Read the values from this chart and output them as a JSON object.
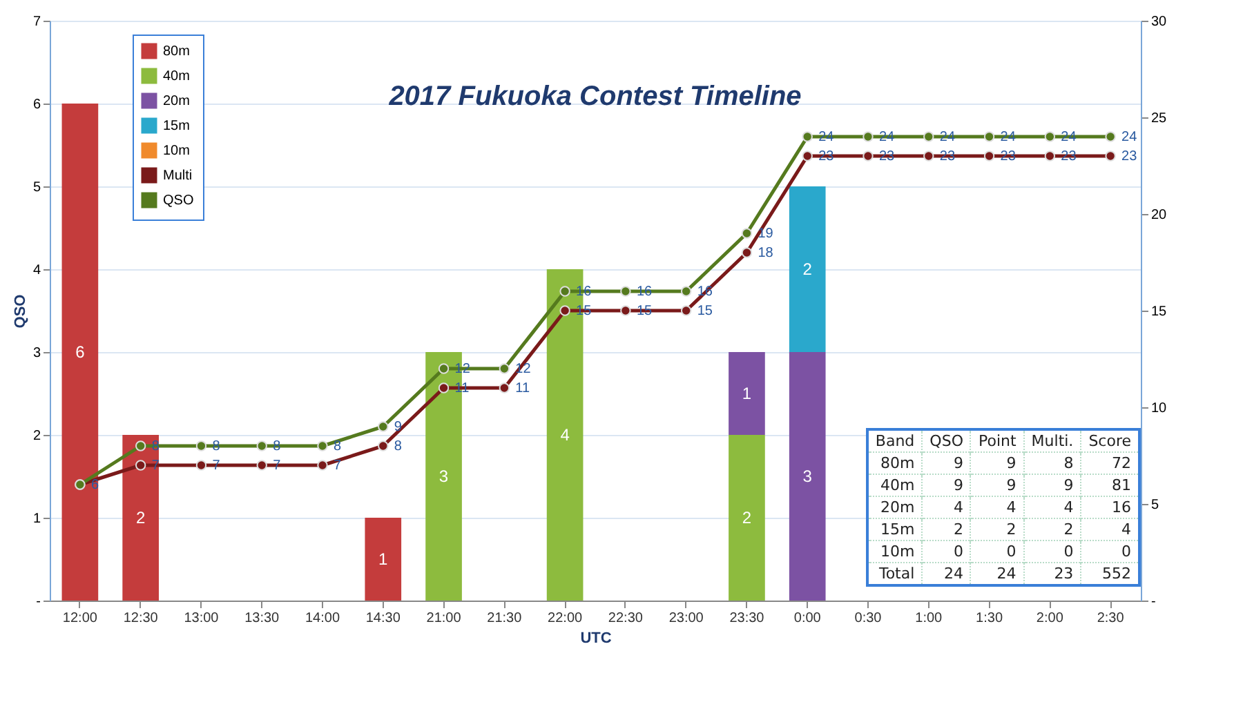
{
  "chart_data": {
    "type": "bar",
    "title": "2017 Fukuoka Contest Timeline",
    "xlabel": "UTC",
    "ylabel": "QSO",
    "categories": [
      "12:00",
      "12:30",
      "13:00",
      "13:30",
      "14:00",
      "14:30",
      "21:00",
      "21:30",
      "22:00",
      "22:30",
      "23:00",
      "23:30",
      "0:00",
      "0:30",
      "1:00",
      "1:30",
      "2:00",
      "2:30"
    ],
    "stacked": true,
    "series": [
      {
        "name": "80m",
        "color": "#c43c3c",
        "values": [
          6,
          2,
          null,
          null,
          null,
          1,
          null,
          null,
          null,
          null,
          null,
          null,
          null,
          null,
          null,
          null,
          null,
          null
        ]
      },
      {
        "name": "40m",
        "color": "#8dbb3e",
        "values": [
          null,
          null,
          null,
          null,
          null,
          null,
          3,
          null,
          4,
          null,
          null,
          2,
          null,
          null,
          null,
          null,
          null,
          null
        ]
      },
      {
        "name": "20m",
        "color": "#7c52a3",
        "values": [
          null,
          null,
          null,
          null,
          null,
          null,
          null,
          null,
          null,
          null,
          null,
          1,
          3,
          null,
          null,
          null,
          null,
          null
        ]
      },
      {
        "name": "15m",
        "color": "#2aa8cc",
        "values": [
          null,
          null,
          null,
          null,
          null,
          null,
          null,
          null,
          null,
          null,
          null,
          null,
          2,
          null,
          null,
          null,
          null,
          null
        ]
      },
      {
        "name": "10m",
        "color": "#f08a2c",
        "values": [
          null,
          null,
          null,
          null,
          null,
          null,
          null,
          null,
          null,
          null,
          null,
          null,
          null,
          null,
          null,
          null,
          null,
          null
        ]
      },
      {
        "name": "Multi",
        "type": "line",
        "axis": "y2",
        "color": "#7a1a1a",
        "values": [
          6,
          7,
          7,
          7,
          7,
          8,
          11,
          11,
          15,
          15,
          15,
          18,
          23,
          23,
          23,
          23,
          23,
          23
        ]
      },
      {
        "name": "QSO",
        "type": "line",
        "axis": "y2",
        "color": "#557a1e",
        "values": [
          6,
          8,
          8,
          8,
          8,
          9,
          12,
          12,
          16,
          16,
          16,
          19,
          24,
          24,
          24,
          24,
          24,
          24
        ],
        "value_labels": [
          null,
          "8",
          "8",
          "8",
          "8",
          "9",
          "12",
          "12",
          "16",
          "16",
          "16",
          "19",
          "24",
          "24",
          "24",
          "24",
          "24",
          "24"
        ]
      }
    ],
    "ylim": [
      0,
      7
    ],
    "yticks": [
      {
        "value": 0,
        "label": "-"
      },
      1,
      2,
      3,
      4,
      5,
      6,
      7
    ],
    "y2lim": [
      0,
      30
    ],
    "y2ticks": [
      {
        "value": 0,
        "label": "-"
      },
      5,
      10,
      15,
      20,
      25,
      30
    ],
    "grid": "y",
    "legend": "top left",
    "marker": "circle",
    "data_labels": true,
    "annotations": [
      "Band QSO Point Multi. Score",
      "80m 9 9 8 72",
      "40m 9 9 9 81",
      "20m 4 4 4 16",
      "15m 2 2 2 4",
      "10m 0 0 0 0",
      "Total 24 24 23 552"
    ]
  }
}
